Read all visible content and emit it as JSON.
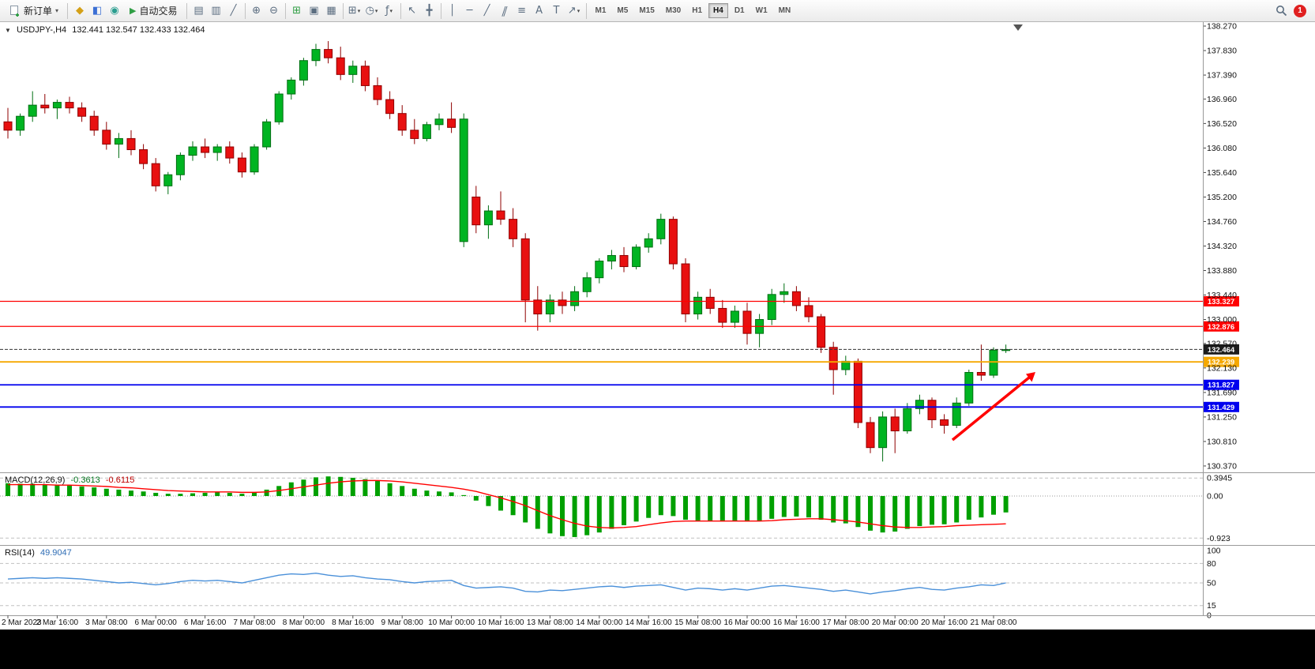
{
  "icons": {
    "dropdown_arrow": "▾",
    "collapse_arrow": "▼",
    "play_arrow": "▶"
  },
  "toolbar": {
    "new_order_label": "新订单",
    "auto_trading_label": "自动交易",
    "notification_count": "1",
    "timeframes": [
      "M1",
      "M5",
      "M15",
      "M30",
      "H1",
      "H4",
      "D1",
      "W1",
      "MN"
    ],
    "active_timeframe": "H4",
    "icon_groups_left": [
      [
        "market-watch-icon",
        "◆",
        "#d4a017"
      ],
      [
        "data-window-icon",
        "◧",
        "#3b6fd4"
      ],
      [
        "navigator-icon",
        "◉",
        "#2a9d8f"
      ]
    ],
    "icon_groups_main": [
      [
        [
          "bar-chart-icon",
          "▤",
          null
        ],
        [
          "candlestick-chart-icon",
          "▥",
          null
        ],
        [
          "line-chart-icon",
          "╱",
          null
        ]
      ],
      [
        [
          "zoom-in-icon",
          "⊕",
          null
        ],
        [
          "zoom-out-icon",
          "⊖",
          null
        ]
      ],
      [
        [
          "tile-windows-icon",
          "⊞",
          "#2f9e44"
        ],
        [
          "cascade-windows-icon",
          "▣",
          null
        ],
        [
          "arrange-windows-icon",
          "▦",
          null
        ]
      ],
      [
        [
          "new-chart-icon",
          "⊞▾",
          null
        ],
        [
          "chart-profiles-icon",
          "◷▾",
          null
        ],
        [
          "indicators-icon",
          "ƒ▾",
          null
        ]
      ],
      [
        [
          "cursor-icon",
          "↖",
          null
        ],
        [
          "crosshair-icon",
          "╋",
          null
        ]
      ],
      [
        [
          "vertical-line-icon",
          "│",
          null
        ],
        [
          "horizontal-line-icon",
          "─",
          null
        ],
        [
          "trendline-icon",
          "╱",
          null
        ],
        [
          "channel-icon",
          "∥",
          null
        ],
        [
          "fibonacci-icon",
          "≡",
          null
        ],
        [
          "text-icon",
          "A",
          null
        ],
        [
          "label-icon",
          "T",
          null
        ],
        [
          "arrows-icon",
          "↗▾",
          null
        ]
      ]
    ]
  },
  "chart": {
    "symbol_tf": "USDJPY-,H4",
    "ohlc": "132.441 132.547 132.433 132.464",
    "macd_label": "MACD(12,26,9)",
    "macd_value_1": "-0.3613",
    "macd_value_2": "-0.6115",
    "rsi_label": "RSI(14)",
    "rsi_value": "49.9047"
  },
  "chart_data": {
    "type": "candlestick",
    "symbol": "USDJPY-",
    "timeframe": "H4",
    "price_axis_ticks": [
      "138.270",
      "137.830",
      "137.390",
      "136.960",
      "136.520",
      "136.080",
      "135.640",
      "135.200",
      "134.760",
      "134.320",
      "133.880",
      "133.440",
      "133.000",
      "132.570",
      "132.130",
      "131.690",
      "131.250",
      "130.810",
      "130.370"
    ],
    "current_price": 132.464,
    "current_price_label": "132.464",
    "horizontal_lines": [
      {
        "price": 133.327,
        "label": "133.327",
        "color": "#ff0000",
        "width": 1.2
      },
      {
        "price": 132.876,
        "label": "132.876",
        "color": "#ff0000",
        "width": 1.2
      },
      {
        "price": 132.239,
        "label": "132.239",
        "color": "#f5a800",
        "width": 1.8
      },
      {
        "price": 131.827,
        "label": "131.827",
        "color": "#0000ee",
        "width": 1.8
      },
      {
        "price": 131.429,
        "label": "131.429",
        "color": "#0000ee",
        "width": 1.8
      }
    ],
    "candles": [
      [
        136.55,
        136.8,
        136.25,
        136.4
      ],
      [
        136.4,
        136.7,
        136.3,
        136.65
      ],
      [
        136.65,
        137.1,
        136.55,
        136.85
      ],
      [
        136.85,
        137.05,
        136.7,
        136.8
      ],
      [
        136.8,
        136.95,
        136.6,
        136.9
      ],
      [
        136.9,
        137.0,
        136.7,
        136.8
      ],
      [
        136.8,
        136.9,
        136.55,
        136.65
      ],
      [
        136.65,
        136.75,
        136.3,
        136.4
      ],
      [
        136.4,
        136.55,
        136.05,
        136.15
      ],
      [
        136.15,
        136.35,
        135.9,
        136.25
      ],
      [
        136.25,
        136.4,
        135.95,
        136.05
      ],
      [
        136.05,
        136.15,
        135.7,
        135.8
      ],
      [
        135.8,
        135.9,
        135.3,
        135.4
      ],
      [
        135.4,
        135.65,
        135.25,
        135.6
      ],
      [
        135.6,
        136.0,
        135.5,
        135.95
      ],
      [
        135.95,
        136.2,
        135.85,
        136.1
      ],
      [
        136.1,
        136.25,
        135.9,
        136.0
      ],
      [
        136.0,
        136.15,
        135.85,
        136.1
      ],
      [
        136.1,
        136.2,
        135.8,
        135.9
      ],
      [
        135.9,
        136.0,
        135.55,
        135.65
      ],
      [
        135.65,
        136.15,
        135.6,
        136.1
      ],
      [
        136.1,
        136.6,
        136.05,
        136.55
      ],
      [
        136.55,
        137.1,
        136.5,
        137.05
      ],
      [
        137.05,
        137.35,
        136.95,
        137.3
      ],
      [
        137.3,
        137.7,
        137.2,
        137.65
      ],
      [
        137.65,
        137.95,
        137.55,
        137.85
      ],
      [
        137.85,
        138.0,
        137.6,
        137.7
      ],
      [
        137.7,
        137.9,
        137.3,
        137.4
      ],
      [
        137.4,
        137.65,
        137.25,
        137.55
      ],
      [
        137.55,
        137.65,
        137.1,
        137.2
      ],
      [
        137.2,
        137.35,
        136.85,
        136.95
      ],
      [
        136.95,
        137.1,
        136.6,
        136.7
      ],
      [
        136.7,
        136.85,
        136.3,
        136.4
      ],
      [
        136.4,
        136.6,
        136.15,
        136.25
      ],
      [
        136.25,
        136.55,
        136.2,
        136.5
      ],
      [
        136.5,
        136.7,
        136.4,
        136.6
      ],
      [
        136.6,
        136.9,
        136.35,
        136.45
      ],
      [
        134.4,
        136.7,
        134.3,
        136.6
      ],
      [
        135.2,
        135.4,
        134.55,
        134.7
      ],
      [
        134.7,
        135.05,
        134.45,
        134.95
      ],
      [
        134.95,
        135.3,
        134.7,
        134.8
      ],
      [
        134.8,
        135.0,
        134.3,
        134.45
      ],
      [
        134.45,
        134.55,
        132.95,
        133.35
      ],
      [
        133.35,
        133.6,
        132.8,
        133.1
      ],
      [
        133.1,
        133.45,
        132.95,
        133.35
      ],
      [
        133.35,
        133.5,
        133.1,
        133.25
      ],
      [
        133.25,
        133.6,
        133.15,
        133.5
      ],
      [
        133.5,
        133.85,
        133.4,
        133.75
      ],
      [
        133.75,
        134.1,
        133.65,
        134.05
      ],
      [
        134.05,
        134.25,
        133.9,
        134.15
      ],
      [
        134.15,
        134.3,
        133.85,
        133.95
      ],
      [
        133.95,
        134.35,
        133.9,
        134.3
      ],
      [
        134.3,
        134.55,
        134.2,
        134.45
      ],
      [
        134.45,
        134.9,
        134.35,
        134.8
      ],
      [
        134.8,
        134.85,
        133.9,
        134.0
      ],
      [
        134.0,
        134.1,
        132.95,
        133.1
      ],
      [
        133.1,
        133.5,
        133.0,
        133.4
      ],
      [
        133.4,
        133.55,
        133.1,
        133.2
      ],
      [
        133.2,
        133.35,
        132.85,
        132.95
      ],
      [
        132.95,
        133.25,
        132.85,
        133.15
      ],
      [
        133.15,
        133.3,
        132.55,
        132.75
      ],
      [
        132.75,
        133.1,
        132.5,
        133.0
      ],
      [
        133.0,
        133.55,
        132.9,
        133.45
      ],
      [
        133.45,
        133.65,
        133.3,
        133.5
      ],
      [
        133.5,
        133.6,
        133.15,
        133.25
      ],
      [
        133.25,
        133.4,
        132.95,
        133.05
      ],
      [
        133.05,
        133.1,
        132.4,
        132.5
      ],
      [
        132.5,
        132.6,
        131.65,
        132.1
      ],
      [
        132.1,
        132.35,
        132.0,
        132.25
      ],
      [
        132.25,
        132.3,
        131.05,
        131.15
      ],
      [
        131.15,
        131.25,
        130.6,
        130.7
      ],
      [
        130.7,
        131.35,
        130.45,
        131.25
      ],
      [
        131.25,
        131.4,
        130.6,
        131.0
      ],
      [
        131.0,
        131.5,
        130.95,
        131.4
      ],
      [
        131.4,
        131.65,
        131.3,
        131.55
      ],
      [
        131.55,
        131.6,
        131.05,
        131.2
      ],
      [
        131.2,
        131.3,
        130.95,
        131.1
      ],
      [
        131.1,
        131.6,
        131.05,
        131.5
      ],
      [
        131.5,
        132.1,
        131.45,
        132.05
      ],
      [
        132.05,
        132.55,
        131.9,
        132.0
      ],
      [
        132.0,
        132.5,
        131.95,
        132.45
      ],
      [
        132.45,
        132.55,
        132.4,
        132.46
      ]
    ],
    "time_labels": [
      {
        "index": 0,
        "label": "2 Mar 2023"
      },
      {
        "index": 4,
        "label": "2 Mar 16:00"
      },
      {
        "index": 8,
        "label": "3 Mar 08:00"
      },
      {
        "index": 12,
        "label": "6 Mar 00:00"
      },
      {
        "index": 16,
        "label": "6 Mar 16:00"
      },
      {
        "index": 20,
        "label": "7 Mar 08:00"
      },
      {
        "index": 24,
        "label": "8 Mar 00:00"
      },
      {
        "index": 28,
        "label": "8 Mar 16:00"
      },
      {
        "index": 32,
        "label": "9 Mar 08:00"
      },
      {
        "index": 36,
        "label": "10 Mar 00:00"
      },
      {
        "index": 40,
        "label": "10 Mar 16:00"
      },
      {
        "index": 44,
        "label": "13 Mar 08:00"
      },
      {
        "index": 48,
        "label": "14 Mar 00:00"
      },
      {
        "index": 52,
        "label": "14 Mar 16:00"
      },
      {
        "index": 56,
        "label": "15 Mar 08:00"
      },
      {
        "index": 60,
        "label": "16 Mar 00:00"
      },
      {
        "index": 64,
        "label": "16 Mar 16:00"
      },
      {
        "index": 68,
        "label": "17 Mar 08:00"
      },
      {
        "index": 72,
        "label": "20 Mar 00:00"
      },
      {
        "index": 76,
        "label": "20 Mar 16:00"
      },
      {
        "index": 80,
        "label": "21 Mar 08:00"
      }
    ],
    "macd": {
      "params": "12,26,9",
      "axis_labels": [
        "0.3945",
        "0.00",
        "-0.923"
      ],
      "histogram": [
        0.28,
        0.27,
        0.27,
        0.26,
        0.25,
        0.23,
        0.21,
        0.19,
        0.16,
        0.14,
        0.12,
        0.1,
        0.07,
        0.05,
        0.05,
        0.06,
        0.07,
        0.08,
        0.07,
        0.05,
        0.08,
        0.14,
        0.22,
        0.3,
        0.36,
        0.41,
        0.43,
        0.42,
        0.4,
        0.37,
        0.33,
        0.28,
        0.22,
        0.16,
        0.12,
        0.1,
        0.08,
        0.02,
        -0.1,
        -0.22,
        -0.32,
        -0.42,
        -0.58,
        -0.72,
        -0.82,
        -0.88,
        -0.9,
        -0.86,
        -0.8,
        -0.72,
        -0.64,
        -0.56,
        -0.48,
        -0.42,
        -0.44,
        -0.52,
        -0.55,
        -0.55,
        -0.56,
        -0.54,
        -0.56,
        -0.54,
        -0.5,
        -0.46,
        -0.45,
        -0.47,
        -0.52,
        -0.58,
        -0.6,
        -0.68,
        -0.76,
        -0.8,
        -0.78,
        -0.72,
        -0.66,
        -0.63,
        -0.62,
        -0.58,
        -0.52,
        -0.47,
        -0.41,
        -0.36
      ],
      "signal": [
        0.25,
        0.25,
        0.25,
        0.25,
        0.24,
        0.24,
        0.23,
        0.22,
        0.21,
        0.19,
        0.18,
        0.16,
        0.14,
        0.12,
        0.11,
        0.1,
        0.09,
        0.09,
        0.09,
        0.08,
        0.08,
        0.09,
        0.12,
        0.16,
        0.2,
        0.24,
        0.28,
        0.31,
        0.33,
        0.34,
        0.34,
        0.33,
        0.31,
        0.28,
        0.25,
        0.22,
        0.19,
        0.15,
        0.1,
        0.03,
        -0.04,
        -0.12,
        -0.21,
        -0.32,
        -0.43,
        -0.52,
        -0.6,
        -0.66,
        -0.69,
        -0.7,
        -0.69,
        -0.67,
        -0.63,
        -0.59,
        -0.56,
        -0.55,
        -0.55,
        -0.55,
        -0.55,
        -0.55,
        -0.55,
        -0.55,
        -0.54,
        -0.52,
        -0.51,
        -0.5,
        -0.5,
        -0.52,
        -0.54,
        -0.57,
        -0.61,
        -0.65,
        -0.68,
        -0.69,
        -0.69,
        -0.68,
        -0.67,
        -0.65,
        -0.64,
        -0.63,
        -0.62,
        -0.61
      ]
    },
    "rsi": {
      "period": 14,
      "axis_labels": [
        {
          "value": 100,
          "label": "100"
        },
        {
          "value": 80,
          "label": "80"
        },
        {
          "value": 50,
          "label": "50"
        },
        {
          "value": 15,
          "label": "15"
        },
        {
          "value": 0,
          "label": "0"
        }
      ],
      "levels": [
        80,
        50,
        15
      ],
      "values": [
        56,
        57,
        58,
        57,
        58,
        57,
        56,
        54,
        52,
        50,
        51,
        49,
        47,
        49,
        52,
        54,
        53,
        54,
        52,
        50,
        54,
        58,
        62,
        64,
        63,
        65,
        62,
        60,
        61,
        58,
        56,
        55,
        52,
        50,
        52,
        53,
        54,
        46,
        42,
        43,
        44,
        42,
        37,
        36,
        39,
        38,
        40,
        42,
        44,
        45,
        43,
        45,
        46,
        47,
        43,
        39,
        42,
        41,
        39,
        41,
        39,
        42,
        45,
        46,
        44,
        42,
        40,
        37,
        39,
        36,
        33,
        36,
        38,
        41,
        43,
        40,
        39,
        42,
        44,
        47,
        46,
        50
      ]
    },
    "colors": {
      "up": "#00b422",
      "up_border": "#006e12",
      "down": "#e81010",
      "down_border": "#8f0000",
      "macd_histogram": "#00a000",
      "macd_signal": "#ff0000",
      "rsi_line": "#4a90d9",
      "annotation_arrow": "#ff0000"
    }
  }
}
